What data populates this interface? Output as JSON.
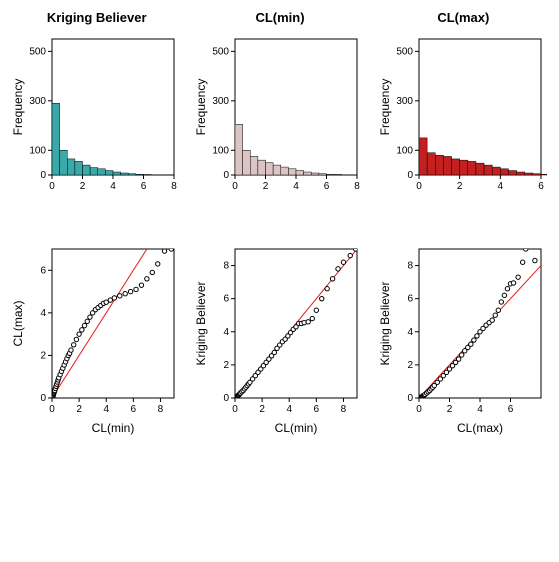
{
  "titles": {
    "col1": "Kriging Believer",
    "col2": "CL(min)",
    "col3": "CL(max)"
  },
  "common": {
    "bg": "#ffffff",
    "axis_color": "#000000",
    "tick_font_size": 10,
    "label_font_size": 12,
    "title_font_size": 13,
    "qq_line_color": "#e41a1c",
    "qq_point_stroke": "#000000",
    "qq_point_fill": "#ffffff",
    "qq_point_r": 2.2
  },
  "hist1": {
    "type": "histogram",
    "ylabel": "Frequency",
    "fill": "#3ba9a9",
    "border": "#000000",
    "xlim": [
      0,
      8
    ],
    "xticks": [
      0,
      2,
      4,
      6,
      8
    ],
    "ylim": [
      0,
      550
    ],
    "yticks": [
      0,
      100,
      300,
      500
    ],
    "bin_width": 0.5,
    "values": [
      290,
      100,
      65,
      55,
      40,
      30,
      25,
      18,
      12,
      8,
      5,
      3,
      2,
      1,
      1,
      0,
      0,
      0
    ]
  },
  "hist2": {
    "type": "histogram",
    "ylabel": "Frequency",
    "fill": "#ddc4c4",
    "border": "#000000",
    "xlim": [
      0,
      8
    ],
    "xticks": [
      0,
      2,
      4,
      6,
      8
    ],
    "ylim": [
      0,
      550
    ],
    "yticks": [
      0,
      100,
      300,
      500
    ],
    "bin_width": 0.5,
    "values": [
      205,
      100,
      75,
      60,
      50,
      40,
      32,
      25,
      18,
      12,
      8,
      5,
      3,
      2,
      1,
      1,
      0,
      0
    ]
  },
  "hist3": {
    "type": "histogram",
    "ylabel": "Frequency",
    "fill": "#c42020",
    "border": "#000000",
    "xlim": [
      0,
      6
    ],
    "xticks": [
      0,
      2,
      4,
      6
    ],
    "ylim": [
      0,
      550
    ],
    "yticks": [
      0,
      100,
      300,
      500
    ],
    "bin_width": 0.4,
    "values": [
      150,
      90,
      80,
      75,
      65,
      60,
      55,
      48,
      40,
      32,
      25,
      18,
      12,
      8,
      5,
      3
    ]
  },
  "qq1": {
    "type": "qq",
    "xlabel": "CL(min)",
    "ylabel": "CL(max)",
    "xlim": [
      0,
      9
    ],
    "xticks": [
      0,
      2,
      4,
      6,
      8
    ],
    "ylim": [
      0,
      7
    ],
    "yticks": [
      0,
      2,
      4,
      6
    ],
    "line": [
      [
        0,
        0
      ],
      [
        9,
        9
      ]
    ],
    "points": [
      [
        0.05,
        0.05
      ],
      [
        0.08,
        0.1
      ],
      [
        0.1,
        0.15
      ],
      [
        0.12,
        0.2
      ],
      [
        0.15,
        0.25
      ],
      [
        0.18,
        0.3
      ],
      [
        0.2,
        0.35
      ],
      [
        0.25,
        0.45
      ],
      [
        0.3,
        0.55
      ],
      [
        0.35,
        0.65
      ],
      [
        0.4,
        0.75
      ],
      [
        0.45,
        0.85
      ],
      [
        0.5,
        0.95
      ],
      [
        0.6,
        1.1
      ],
      [
        0.7,
        1.25
      ],
      [
        0.8,
        1.4
      ],
      [
        0.9,
        1.55
      ],
      [
        1.0,
        1.7
      ],
      [
        1.1,
        1.85
      ],
      [
        1.2,
        2.0
      ],
      [
        1.3,
        2.1
      ],
      [
        1.4,
        2.25
      ],
      [
        1.6,
        2.5
      ],
      [
        1.8,
        2.75
      ],
      [
        2.0,
        3.0
      ],
      [
        2.2,
        3.2
      ],
      [
        2.4,
        3.4
      ],
      [
        2.6,
        3.6
      ],
      [
        2.8,
        3.8
      ],
      [
        3.0,
        4.0
      ],
      [
        3.2,
        4.15
      ],
      [
        3.4,
        4.25
      ],
      [
        3.6,
        4.35
      ],
      [
        3.8,
        4.45
      ],
      [
        4.0,
        4.5
      ],
      [
        4.3,
        4.6
      ],
      [
        4.6,
        4.7
      ],
      [
        5.0,
        4.8
      ],
      [
        5.4,
        4.9
      ],
      [
        5.8,
        5.0
      ],
      [
        6.2,
        5.1
      ],
      [
        6.6,
        5.3
      ],
      [
        7.0,
        5.6
      ],
      [
        7.4,
        5.9
      ],
      [
        7.8,
        6.3
      ],
      [
        8.3,
        6.9
      ],
      [
        8.8,
        7.0
      ]
    ]
  },
  "qq2": {
    "type": "qq",
    "xlabel": "CL(min)",
    "ylabel": "Kriging Believer",
    "xlim": [
      0,
      9
    ],
    "xticks": [
      0,
      2,
      4,
      6,
      8
    ],
    "ylim": [
      0,
      9
    ],
    "yticks": [
      0,
      2,
      4,
      6,
      8
    ],
    "line": [
      [
        0,
        0
      ],
      [
        9,
        9
      ]
    ],
    "points": [
      [
        0.05,
        0.03
      ],
      [
        0.08,
        0.05
      ],
      [
        0.1,
        0.07
      ],
      [
        0.15,
        0.1
      ],
      [
        0.2,
        0.13
      ],
      [
        0.25,
        0.17
      ],
      [
        0.3,
        0.2
      ],
      [
        0.35,
        0.25
      ],
      [
        0.4,
        0.3
      ],
      [
        0.5,
        0.38
      ],
      [
        0.6,
        0.45
      ],
      [
        0.7,
        0.55
      ],
      [
        0.8,
        0.65
      ],
      [
        0.9,
        0.75
      ],
      [
        1.0,
        0.85
      ],
      [
        1.1,
        0.95
      ],
      [
        1.3,
        1.15
      ],
      [
        1.5,
        1.35
      ],
      [
        1.7,
        1.55
      ],
      [
        1.9,
        1.75
      ],
      [
        2.1,
        1.95
      ],
      [
        2.3,
        2.15
      ],
      [
        2.5,
        2.35
      ],
      [
        2.7,
        2.55
      ],
      [
        2.9,
        2.75
      ],
      [
        3.1,
        3.0
      ],
      [
        3.3,
        3.2
      ],
      [
        3.5,
        3.4
      ],
      [
        3.7,
        3.55
      ],
      [
        3.9,
        3.75
      ],
      [
        4.1,
        3.95
      ],
      [
        4.3,
        4.15
      ],
      [
        4.5,
        4.3
      ],
      [
        4.7,
        4.5
      ],
      [
        4.9,
        4.5
      ],
      [
        5.1,
        4.55
      ],
      [
        5.4,
        4.6
      ],
      [
        5.7,
        4.8
      ],
      [
        6.0,
        5.3
      ],
      [
        6.4,
        6.0
      ],
      [
        6.8,
        6.6
      ],
      [
        7.2,
        7.2
      ],
      [
        7.6,
        7.8
      ],
      [
        8.0,
        8.2
      ],
      [
        8.5,
        8.6
      ],
      [
        8.9,
        9.0
      ]
    ]
  },
  "qq3": {
    "type": "qq",
    "xlabel": "CL(max)",
    "ylabel": "Kriging Believer",
    "xlim": [
      0,
      8
    ],
    "xticks": [
      0,
      2,
      4,
      6
    ],
    "ylim": [
      0,
      9
    ],
    "yticks": [
      0,
      2,
      4,
      6,
      8
    ],
    "line": [
      [
        0,
        0
      ],
      [
        8,
        8
      ]
    ],
    "points": [
      [
        0.05,
        0.02
      ],
      [
        0.1,
        0.04
      ],
      [
        0.15,
        0.06
      ],
      [
        0.2,
        0.09
      ],
      [
        0.25,
        0.12
      ],
      [
        0.3,
        0.15
      ],
      [
        0.35,
        0.18
      ],
      [
        0.4,
        0.22
      ],
      [
        0.5,
        0.3
      ],
      [
        0.6,
        0.38
      ],
      [
        0.7,
        0.45
      ],
      [
        0.8,
        0.55
      ],
      [
        0.9,
        0.65
      ],
      [
        1.0,
        0.75
      ],
      [
        1.2,
        0.95
      ],
      [
        1.4,
        1.15
      ],
      [
        1.6,
        1.35
      ],
      [
        1.8,
        1.55
      ],
      [
        2.0,
        1.75
      ],
      [
        2.2,
        1.95
      ],
      [
        2.4,
        2.15
      ],
      [
        2.6,
        2.35
      ],
      [
        2.8,
        2.6
      ],
      [
        3.0,
        2.85
      ],
      [
        3.2,
        3.05
      ],
      [
        3.4,
        3.25
      ],
      [
        3.6,
        3.5
      ],
      [
        3.8,
        3.75
      ],
      [
        4.0,
        4.0
      ],
      [
        4.2,
        4.2
      ],
      [
        4.4,
        4.4
      ],
      [
        4.6,
        4.55
      ],
      [
        4.8,
        4.7
      ],
      [
        5.0,
        5.0
      ],
      [
        5.2,
        5.3
      ],
      [
        5.4,
        5.8
      ],
      [
        5.6,
        6.2
      ],
      [
        5.8,
        6.6
      ],
      [
        6.0,
        6.9
      ],
      [
        6.2,
        6.95
      ],
      [
        6.5,
        7.3
      ],
      [
        6.8,
        8.2
      ],
      [
        7.0,
        9.0
      ],
      [
        7.6,
        8.3
      ]
    ]
  }
}
